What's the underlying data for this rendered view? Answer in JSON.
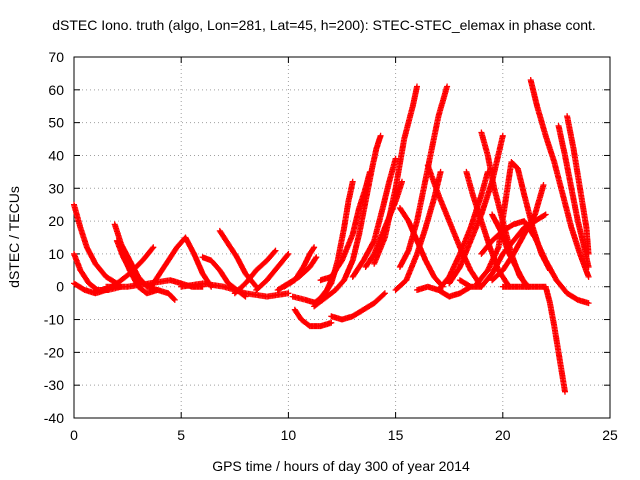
{
  "chart_data": {
    "type": "scatter",
    "title": "dSTEC Iono. truth (algo, Lon=281, Lat=45, h=200): STEC-STEC_elemax in phase cont.",
    "xlabel": "GPS time / hours of day 300 of year 2014",
    "ylabel": "dSTEC  / TECUs",
    "xlim": [
      0,
      25
    ],
    "ylim": [
      -40,
      70
    ],
    "xticks": [
      0,
      5,
      10,
      15,
      20,
      25
    ],
    "yticks": [
      -40,
      -30,
      -20,
      -10,
      0,
      10,
      20,
      30,
      40,
      50,
      60,
      70
    ],
    "grid": true,
    "legend": "none",
    "marker": "plus",
    "color": "#ff0000",
    "series": [
      {
        "points": [
          [
            0,
            25
          ],
          [
            0.3,
            18
          ],
          [
            0.6,
            12
          ],
          [
            1.0,
            7
          ],
          [
            1.5,
            3
          ],
          [
            2.0,
            1
          ]
        ]
      },
      {
        "points": [
          [
            0,
            10
          ],
          [
            0.3,
            5
          ],
          [
            0.7,
            1
          ],
          [
            1.1,
            -1
          ],
          [
            1.6,
            -1
          ],
          [
            2.2,
            0
          ]
        ]
      },
      {
        "points": [
          [
            0,
            1
          ],
          [
            0.5,
            -1
          ],
          [
            1.0,
            -2
          ],
          [
            1.5,
            -1
          ],
          [
            2.0,
            1
          ],
          [
            2.6,
            4
          ],
          [
            3.2,
            8
          ],
          [
            3.7,
            12
          ]
        ]
      },
      {
        "points": [
          [
            1.9,
            19
          ],
          [
            2.2,
            13
          ],
          [
            2.6,
            8
          ],
          [
            3.0,
            3
          ],
          [
            3.4,
            0
          ],
          [
            3.9,
            -1
          ]
        ]
      },
      {
        "points": [
          [
            2.0,
            14
          ],
          [
            2.3,
            9
          ],
          [
            2.7,
            4
          ],
          [
            3.0,
            1
          ]
        ]
      },
      {
        "points": [
          [
            2.2,
            11
          ],
          [
            2.6,
            5
          ],
          [
            3.0,
            0
          ],
          [
            3.4,
            -2
          ],
          [
            3.9,
            -1
          ],
          [
            4.4,
            -2
          ],
          [
            4.7,
            -4
          ]
        ]
      },
      {
        "points": [
          [
            1.5,
            0
          ],
          [
            2.5,
            0
          ],
          [
            3.5,
            1
          ],
          [
            4.5,
            2
          ],
          [
            5.0,
            1
          ],
          [
            5.5,
            0
          ],
          [
            6.0,
            0
          ]
        ]
      },
      {
        "points": [
          [
            3.6,
            0
          ],
          [
            4.0,
            4
          ],
          [
            4.4,
            8
          ],
          [
            4.8,
            12
          ],
          [
            5.2,
            15
          ],
          [
            5.6,
            10
          ],
          [
            6.0,
            4
          ],
          [
            6.4,
            0
          ]
        ]
      },
      {
        "points": [
          [
            5.0,
            0
          ],
          [
            6.0,
            1
          ],
          [
            7.0,
            0
          ],
          [
            8.0,
            -2
          ],
          [
            9.0,
            -3
          ],
          [
            10.0,
            -2
          ]
        ]
      },
      {
        "points": [
          [
            6.0,
            9
          ],
          [
            6.4,
            8
          ],
          [
            6.8,
            5
          ],
          [
            7.2,
            1
          ],
          [
            7.6,
            -1
          ],
          [
            8.0,
            -3
          ]
        ]
      },
      {
        "points": [
          [
            6.8,
            17
          ],
          [
            7.2,
            13
          ],
          [
            7.6,
            9
          ],
          [
            8.0,
            4
          ],
          [
            8.5,
            0
          ]
        ]
      },
      {
        "points": [
          [
            7.5,
            -2
          ],
          [
            8.0,
            1
          ],
          [
            8.5,
            5
          ],
          [
            9.0,
            8
          ],
          [
            9.4,
            11
          ]
        ]
      },
      {
        "points": [
          [
            8.5,
            -1
          ],
          [
            9.0,
            2
          ],
          [
            9.5,
            6
          ],
          [
            10.0,
            10
          ]
        ]
      },
      {
        "points": [
          [
            9.5,
            -1
          ],
          [
            10.0,
            1
          ],
          [
            10.5,
            3
          ],
          [
            11.0,
            6
          ],
          [
            11.3,
            9
          ]
        ]
      },
      {
        "points": [
          [
            9.8,
            0
          ],
          [
            10.3,
            2
          ],
          [
            10.7,
            6
          ],
          [
            11.0,
            10
          ],
          [
            11.2,
            12
          ]
        ]
      },
      {
        "points": [
          [
            10.2,
            -3
          ],
          [
            10.8,
            -4
          ],
          [
            11.3,
            -5
          ],
          [
            11.8,
            -1
          ],
          [
            12.2,
            5
          ]
        ]
      },
      {
        "points": [
          [
            10.3,
            -7
          ],
          [
            10.6,
            -10
          ],
          [
            11.0,
            -12
          ],
          [
            11.5,
            -12
          ],
          [
            12.0,
            -11
          ]
        ]
      },
      {
        "points": [
          [
            11.2,
            -6
          ],
          [
            11.8,
            -3
          ],
          [
            12.2,
            -1
          ],
          [
            12.6,
            2
          ],
          [
            13.0,
            8
          ],
          [
            13.3,
            16
          ],
          [
            13.6,
            26
          ],
          [
            13.9,
            36
          ],
          [
            14.1,
            42
          ],
          [
            14.3,
            46
          ]
        ]
      },
      {
        "points": [
          [
            11.2,
            -5
          ],
          [
            11.6,
            -3
          ],
          [
            12.0,
            1
          ],
          [
            12.3,
            8
          ],
          [
            12.6,
            18
          ],
          [
            12.8,
            26
          ],
          [
            13.0,
            32
          ]
        ]
      },
      {
        "points": [
          [
            12.0,
            -9
          ],
          [
            12.5,
            -10
          ],
          [
            13.0,
            -9
          ],
          [
            13.5,
            -7
          ],
          [
            14.0,
            -5
          ],
          [
            14.5,
            -2
          ]
        ]
      },
      {
        "points": [
          [
            11.5,
            2
          ],
          [
            12.0,
            3
          ],
          [
            12.5,
            8
          ],
          [
            13.0,
            16
          ],
          [
            13.3,
            24
          ],
          [
            13.6,
            30
          ],
          [
            13.8,
            35
          ]
        ]
      },
      {
        "points": [
          [
            13.0,
            3
          ],
          [
            13.5,
            8
          ],
          [
            14.0,
            14
          ],
          [
            14.4,
            24
          ],
          [
            14.7,
            32
          ],
          [
            15.0,
            39
          ]
        ]
      },
      {
        "points": [
          [
            13.6,
            6
          ],
          [
            14.0,
            10
          ],
          [
            14.5,
            18
          ],
          [
            15.0,
            26
          ],
          [
            15.3,
            32
          ]
        ]
      },
      {
        "points": [
          [
            14.0,
            7
          ],
          [
            14.5,
            15
          ],
          [
            15.0,
            30
          ],
          [
            15.4,
            45
          ],
          [
            15.8,
            55
          ],
          [
            16.0,
            61
          ]
        ]
      },
      {
        "points": [
          [
            15.2,
            24
          ],
          [
            15.6,
            20
          ],
          [
            16.0,
            14
          ],
          [
            16.4,
            8
          ],
          [
            16.8,
            3
          ],
          [
            17.2,
            0
          ]
        ]
      },
      {
        "points": [
          [
            15.0,
            -1
          ],
          [
            15.5,
            2
          ],
          [
            16.0,
            10
          ],
          [
            16.4,
            18
          ],
          [
            16.8,
            27
          ],
          [
            17.1,
            35
          ]
        ]
      },
      {
        "points": [
          [
            15.2,
            6
          ],
          [
            15.6,
            11
          ],
          [
            16.0,
            20
          ],
          [
            16.5,
            36
          ],
          [
            17.0,
            52
          ],
          [
            17.4,
            61
          ]
        ]
      },
      {
        "points": [
          [
            16.0,
            -1
          ],
          [
            16.5,
            0
          ],
          [
            17.0,
            -1
          ],
          [
            17.5,
            -3
          ],
          [
            18.0,
            -2
          ],
          [
            18.5,
            0
          ]
        ]
      },
      {
        "points": [
          [
            16.5,
            37
          ],
          [
            17.0,
            28
          ],
          [
            17.5,
            20
          ],
          [
            18.0,
            12
          ],
          [
            18.5,
            5
          ],
          [
            19.0,
            0
          ]
        ]
      },
      {
        "points": [
          [
            17.0,
            -1
          ],
          [
            17.5,
            3
          ],
          [
            18.0,
            10
          ],
          [
            18.5,
            18
          ],
          [
            19.0,
            28
          ],
          [
            19.3,
            35
          ]
        ]
      },
      {
        "points": [
          [
            17.5,
            1
          ],
          [
            18.0,
            6
          ],
          [
            18.5,
            14
          ],
          [
            19.0,
            22
          ],
          [
            19.5,
            32
          ],
          [
            20.0,
            46
          ]
        ]
      },
      {
        "points": [
          [
            18.3,
            35
          ],
          [
            18.6,
            28
          ],
          [
            19.0,
            20
          ],
          [
            19.4,
            12
          ],
          [
            19.8,
            5
          ],
          [
            20.2,
            1
          ]
        ]
      },
      {
        "points": [
          [
            19.0,
            47
          ],
          [
            19.3,
            40
          ],
          [
            19.6,
            30
          ],
          [
            20.0,
            20
          ],
          [
            20.4,
            10
          ],
          [
            20.8,
            3
          ],
          [
            21.2,
            0
          ]
        ]
      },
      {
        "points": [
          [
            19.5,
            22
          ],
          [
            19.9,
            17
          ],
          [
            20.3,
            10
          ],
          [
            20.7,
            5
          ],
          [
            21.1,
            0
          ]
        ]
      },
      {
        "points": [
          [
            18.8,
            1
          ],
          [
            19.3,
            5
          ],
          [
            19.8,
            12
          ],
          [
            20.1,
            25
          ],
          [
            20.4,
            38
          ],
          [
            20.7,
            36
          ],
          [
            21.0,
            28
          ],
          [
            21.4,
            18
          ],
          [
            21.8,
            10
          ],
          [
            22.2,
            5
          ]
        ]
      },
      {
        "points": [
          [
            18.0,
            2
          ],
          [
            18.5,
            0
          ],
          [
            19.0,
            0
          ],
          [
            19.5,
            4
          ],
          [
            20.0,
            10
          ],
          [
            20.5,
            14
          ],
          [
            21.0,
            18
          ],
          [
            21.5,
            20
          ],
          [
            22.0,
            22
          ]
        ]
      },
      {
        "points": [
          [
            19.0,
            10
          ],
          [
            19.5,
            14
          ],
          [
            20.0,
            17
          ],
          [
            20.5,
            19
          ],
          [
            21.0,
            20
          ],
          [
            21.5,
            15
          ],
          [
            22.0,
            8
          ],
          [
            22.5,
            2
          ],
          [
            23.0,
            -2
          ],
          [
            23.5,
            -4
          ],
          [
            24.0,
            -5
          ]
        ]
      },
      {
        "points": [
          [
            20.0,
            0
          ],
          [
            20.5,
            0
          ],
          [
            21.0,
            0
          ],
          [
            21.5,
            0
          ],
          [
            22.0,
            0
          ],
          [
            22.2,
            -5
          ],
          [
            22.4,
            -12
          ],
          [
            22.6,
            -20
          ],
          [
            22.8,
            -28
          ],
          [
            22.9,
            -32
          ]
        ]
      },
      {
        "points": [
          [
            19.5,
            2
          ],
          [
            20.0,
            5
          ],
          [
            20.5,
            10
          ],
          [
            21.0,
            16
          ],
          [
            21.5,
            22
          ],
          [
            21.9,
            31
          ]
        ]
      },
      {
        "points": [
          [
            21.3,
            63
          ],
          [
            21.6,
            55
          ],
          [
            22.0,
            46
          ],
          [
            22.4,
            38
          ],
          [
            22.8,
            28
          ],
          [
            23.2,
            18
          ],
          [
            23.6,
            10
          ],
          [
            24.0,
            3
          ]
        ]
      },
      {
        "points": [
          [
            22.6,
            49
          ],
          [
            22.9,
            40
          ],
          [
            23.2,
            30
          ],
          [
            23.5,
            20
          ],
          [
            23.8,
            12
          ],
          [
            24.0,
            6
          ]
        ]
      },
      {
        "points": [
          [
            23.0,
            52
          ],
          [
            23.3,
            42
          ],
          [
            23.6,
            30
          ],
          [
            23.9,
            18
          ],
          [
            24.0,
            10
          ]
        ]
      }
    ]
  }
}
